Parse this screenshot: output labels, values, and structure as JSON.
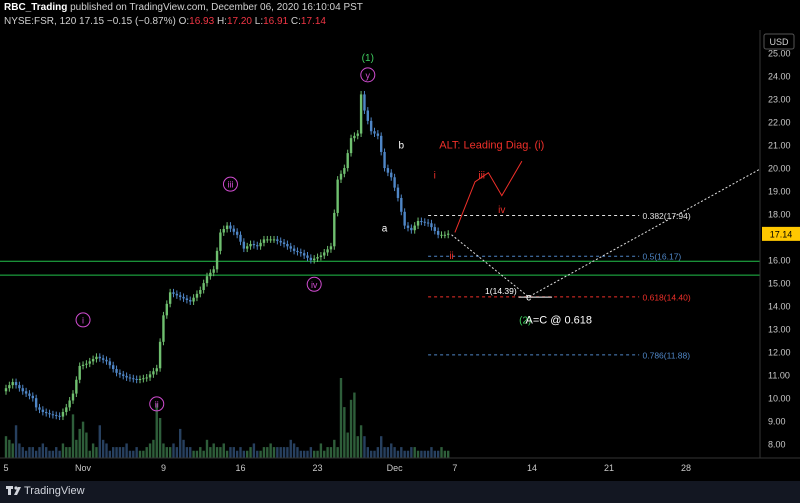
{
  "header": {
    "author": "RBC_Trading",
    "published_text": "published on TradingView.com, December 06, 2020 16:10:04 PST",
    "symbol": "NYSE:FSR, 120",
    "last": "17.15",
    "change": "−0.15 (−0.87%)",
    "open_label": "O:",
    "open": "16.93",
    "high_label": "H:",
    "high": "17.20",
    "low_label": "L:",
    "low": "16.91",
    "close_label": "C:",
    "close": "17.14"
  },
  "footer": {
    "brand": "TradingView"
  },
  "colors": {
    "background": "#000000",
    "up": "#6fbf6f",
    "down": "#4f86c6",
    "wave": "#d04cd0",
    "alt": "#f0302a",
    "green_line": "#22c04a"
  },
  "chart_data": {
    "type": "candlestick",
    "currency": "USD",
    "ylim": [
      7.4,
      26.0
    ],
    "y_ticks": [
      "25.00",
      "24.00",
      "23.00",
      "22.00",
      "21.00",
      "20.00",
      "19.00",
      "18.00",
      "17.00",
      "16.00",
      "15.00",
      "14.00",
      "13.00",
      "12.00",
      "11.00",
      "10.00",
      "9.00",
      "8.00"
    ],
    "y_tick_values": [
      25,
      24,
      23,
      22,
      21,
      20,
      19,
      18,
      17,
      16,
      15,
      14,
      13,
      12,
      11,
      10,
      9,
      8
    ],
    "x_ticks": [
      "5",
      "Nov",
      "9",
      "16",
      "23",
      "Dec",
      "7",
      "14",
      "21",
      "28"
    ],
    "x_tick_index": [
      0,
      23,
      47,
      70,
      93,
      116,
      134,
      157,
      180,
      203
    ],
    "current_price": "17.14",
    "candle_count": 133,
    "price_path": [
      [
        0,
        10.3
      ],
      [
        3,
        10.7
      ],
      [
        6,
        10.3
      ],
      [
        9,
        10.0
      ],
      [
        10,
        9.6
      ],
      [
        12,
        9.4
      ],
      [
        14,
        9.3
      ],
      [
        17,
        9.2
      ],
      [
        19,
        9.6
      ],
      [
        21,
        10.2
      ],
      [
        23,
        11.4
      ],
      [
        25,
        11.5
      ],
      [
        28,
        11.8
      ],
      [
        31,
        11.6
      ],
      [
        34,
        11.1
      ],
      [
        37,
        10.9
      ],
      [
        40,
        10.8
      ],
      [
        43,
        10.9
      ],
      [
        46,
        11.3
      ],
      [
        48,
        13.6
      ],
      [
        50,
        14.6
      ],
      [
        53,
        14.4
      ],
      [
        56,
        14.2
      ],
      [
        59,
        14.7
      ],
      [
        61,
        15.3
      ],
      [
        63,
        15.6
      ],
      [
        65,
        17.2
      ],
      [
        67,
        17.5
      ],
      [
        70,
        17.1
      ],
      [
        72,
        16.5
      ],
      [
        74,
        16.7
      ],
      [
        76,
        16.6
      ],
      [
        78,
        16.9
      ],
      [
        81,
        16.9
      ],
      [
        84,
        16.7
      ],
      [
        87,
        16.4
      ],
      [
        89,
        16.3
      ],
      [
        92,
        16.0
      ],
      [
        95,
        16.2
      ],
      [
        98,
        16.6
      ],
      [
        100,
        19.5
      ],
      [
        102,
        20.0
      ],
      [
        104,
        21.3
      ],
      [
        106,
        21.5
      ],
      [
        107,
        23.2
      ],
      [
        108,
        22.5
      ],
      [
        110,
        21.6
      ],
      [
        112,
        21.4
      ],
      [
        114,
        20.0
      ],
      [
        116,
        19.6
      ],
      [
        118,
        18.7
      ],
      [
        120,
        17.5
      ],
      [
        122,
        17.3
      ],
      [
        124,
        17.7
      ],
      [
        127,
        17.6
      ],
      [
        130,
        17.1
      ],
      [
        132,
        17.1
      ],
      [
        133,
        17.15
      ]
    ],
    "volumes": [
      6,
      5,
      4,
      9,
      4,
      3,
      2,
      3,
      3,
      2,
      3,
      4,
      3,
      2,
      2,
      3,
      2,
      4,
      3,
      3,
      12,
      5,
      8,
      10,
      7,
      2,
      4,
      3,
      9,
      5,
      4,
      2,
      3,
      3,
      3,
      3,
      4,
      2,
      2,
      3,
      2,
      2,
      3,
      4,
      5,
      15,
      11,
      4,
      3,
      3,
      4,
      3,
      8,
      5,
      3,
      3,
      2,
      2,
      3,
      2,
      5,
      3,
      4,
      3,
      3,
      4,
      2,
      3,
      3,
      2,
      3,
      2,
      2,
      3,
      4,
      2,
      2,
      3,
      3,
      4,
      3,
      3,
      3,
      3,
      3,
      5,
      4,
      3,
      2,
      2,
      2,
      3,
      2,
      2,
      4,
      2,
      3,
      3,
      5,
      3,
      22,
      14,
      7,
      16,
      18,
      6,
      9,
      6,
      3,
      2,
      2,
      3,
      6,
      3,
      3,
      4,
      3,
      2,
      3,
      2,
      2,
      3,
      3,
      2,
      2,
      2,
      2,
      3,
      2,
      2,
      3,
      2,
      2
    ],
    "fib_levels": [
      {
        "label": "0.382(17.94)",
        "value": 17.94
      },
      {
        "label": "0.5(16.17)",
        "value": 16.17
      },
      {
        "label": "0.618(14.40)",
        "value": 14.4
      },
      {
        "label": "0.786(11.88)",
        "value": 11.88
      }
    ],
    "support_lines": [
      15.95,
      15.35
    ],
    "projection_label": "1(14.39)",
    "projection_value": 14.39,
    "wave_labels": [
      {
        "text": "i",
        "x": 23,
        "y": 13.4
      },
      {
        "text": "ii",
        "x": 45,
        "y": 9.75
      },
      {
        "text": "iii",
        "x": 67,
        "y": 19.3
      },
      {
        "text": "iv",
        "x": 92,
        "y": 14.95
      },
      {
        "text": "y",
        "x": 108,
        "y": 24.05
      },
      {
        "text": "(1)",
        "x": 108,
        "y": 24.8
      },
      {
        "text": "a",
        "x": 113,
        "y": 17.4
      },
      {
        "text": "b",
        "x": 118,
        "y": 21.0
      },
      {
        "text": "c",
        "x": 156,
        "y": 14.4
      },
      {
        "text": "(2)",
        "x": 155,
        "y": 13.4
      },
      {
        "text": "A=C @ 0.618",
        "x": 165,
        "y": 13.4
      },
      {
        "text": "i",
        "x": 128,
        "y": 19.7
      },
      {
        "text": "ii",
        "x": 133,
        "y": 16.2
      },
      {
        "text": "iii",
        "x": 142,
        "y": 19.7
      },
      {
        "text": "iv",
        "x": 148,
        "y": 18.2
      },
      {
        "text": "ALT: Leading Diag. (i)",
        "x": 145,
        "y": 21.0
      }
    ]
  }
}
